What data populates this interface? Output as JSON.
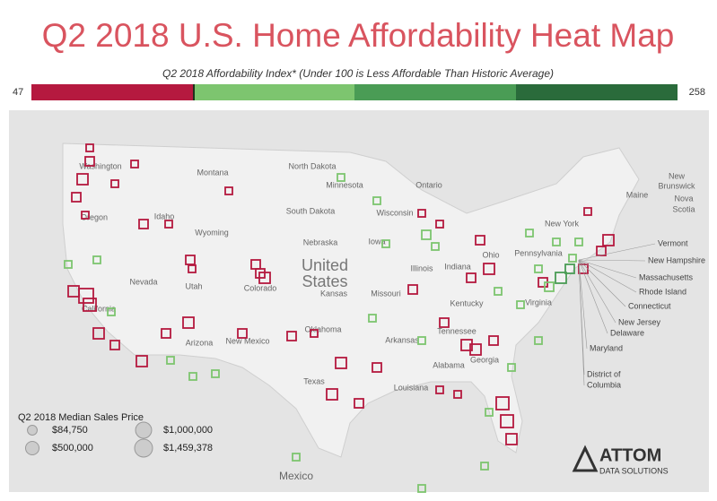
{
  "header": {
    "title": "Q2 2018 U.S. Home Affordability Heat Map"
  },
  "color_legend": {
    "subtitle": "Q2 2018 Affordability Index* (Under 100 is Less Affordable Than Historic Average)",
    "min": 47,
    "max": 258,
    "colors": [
      "#b5193f",
      "#7dc56f",
      "#4a9c55",
      "#2a6b3b"
    ]
  },
  "map": {
    "region_labels": [
      "Washington",
      "Oregon",
      "Idaho",
      "Montana",
      "Wyoming",
      "North Dakota",
      "South Dakota",
      "Nebraska",
      "Minnesota",
      "Wisconsin",
      "Iowa",
      "Illinois",
      "Indiana",
      "Missouri",
      "Kansas",
      "Kentucky",
      "Colorado",
      "Utah",
      "Nevada",
      "California",
      "Arizona",
      "New Mexico",
      "Texas",
      "Oklahoma",
      "Arkansas",
      "Louisiana",
      "Alabama",
      "Tennessee",
      "Georgia",
      "Virginia",
      "Pennsylvania",
      "New York",
      "Maine",
      "Ohio"
    ],
    "country_labels": [
      "United",
      "States",
      "Mexico",
      "New",
      "Brunswick",
      "Nova",
      "Scotia",
      "Ontario"
    ],
    "callouts": [
      "Vermont",
      "New Hampshire",
      "Massachusetts",
      "Rhode Island",
      "Connecticut",
      "New Jersey",
      "Delaware",
      "Maryland",
      "District of",
      "Columbia"
    ]
  },
  "size_legend": {
    "title": "Q2 2018 Median Sales Price",
    "items": [
      {
        "value": 84750,
        "label": "$84,750"
      },
      {
        "value": 1000000,
        "label": "$1,000,000"
      },
      {
        "value": 500000,
        "label": "$500,000"
      },
      {
        "value": 1459378,
        "label": "$1,459,378"
      }
    ]
  },
  "logo": {
    "name": "ATTOM",
    "tagline": "DATA SOLUTIONS"
  }
}
